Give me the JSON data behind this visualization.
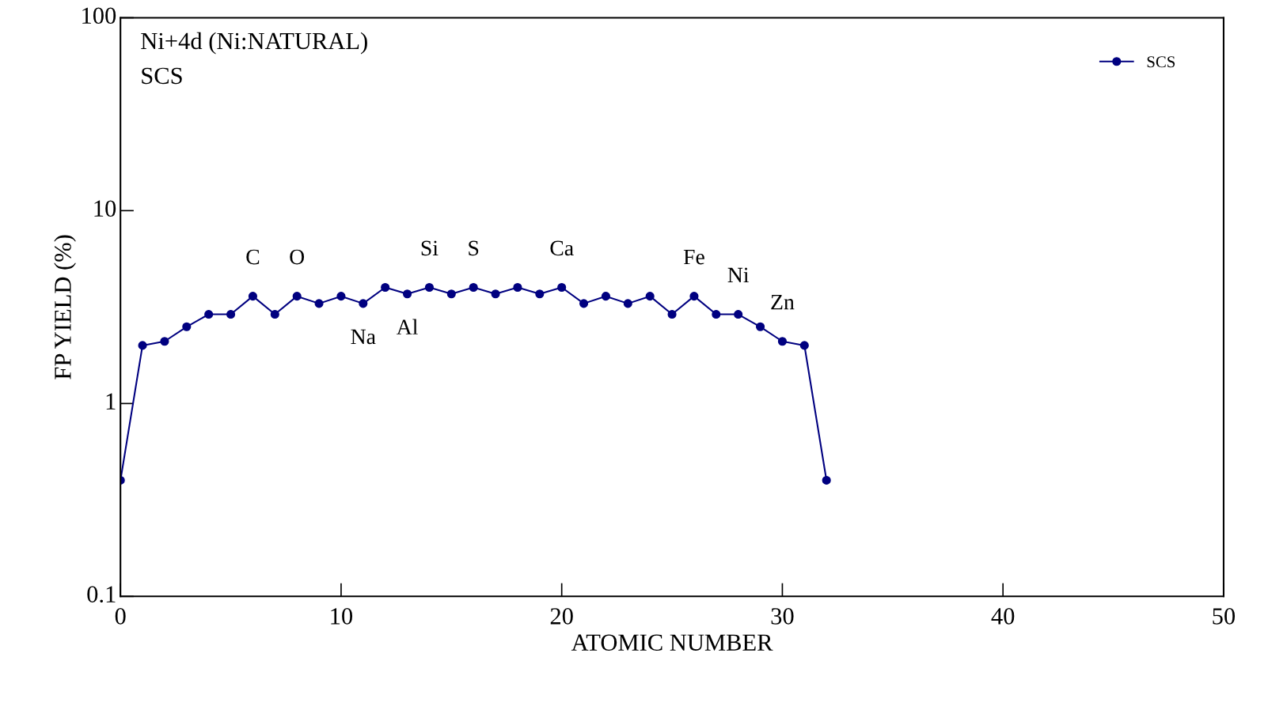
{
  "chart_data": {
    "type": "line",
    "xlabel": "ATOMIC NUMBER",
    "ylabel": "FP YIELD (%)",
    "x": [
      0,
      1,
      2,
      3,
      4,
      5,
      6,
      7,
      8,
      9,
      10,
      11,
      12,
      13,
      14,
      15,
      16,
      17,
      18,
      19,
      20,
      21,
      22,
      23,
      24,
      25,
      26,
      27,
      28,
      29,
      30,
      31,
      32
    ],
    "series": [
      {
        "name": "SCS",
        "color": "#000080",
        "values": [
          0.4,
          2.0,
          2.1,
          2.5,
          2.9,
          2.9,
          3.6,
          2.9,
          3.6,
          3.3,
          3.6,
          3.3,
          4.0,
          3.7,
          4.0,
          3.7,
          4.0,
          3.7,
          4.0,
          3.7,
          4.0,
          3.3,
          3.6,
          3.3,
          3.6,
          2.9,
          3.6,
          2.9,
          2.9,
          2.5,
          2.1,
          2.0,
          0.4
        ]
      }
    ],
    "xlim": [
      0,
      50
    ],
    "xticks": [
      0,
      10,
      20,
      30,
      40,
      50
    ],
    "ylim": [
      0.1,
      100
    ],
    "yticks": [
      0.1,
      1,
      10,
      100
    ],
    "log": "y",
    "marker": "circle",
    "line_style": "solid",
    "grid": false,
    "legend": "top right",
    "annotations": [
      "Ni+4d (Ni:NATURAL)",
      "SCS",
      {
        "text": "C",
        "x": 6,
        "y": 3.6
      },
      {
        "text": "O",
        "x": 8,
        "y": 3.6
      },
      {
        "text": "Na",
        "x": 11,
        "y": 3.3
      },
      {
        "text": "Al",
        "x": 13,
        "y": 3.7
      },
      {
        "text": "Si",
        "x": 14,
        "y": 4.0
      },
      {
        "text": "S",
        "x": 16,
        "y": 4.0
      },
      {
        "text": "Ca",
        "x": 20,
        "y": 4.0
      },
      {
        "text": "Fe",
        "x": 26,
        "y": 3.6
      },
      {
        "text": "Ni",
        "x": 28,
        "y": 2.9
      },
      {
        "text": "Zn",
        "x": 30,
        "y": 2.1
      }
    ]
  }
}
